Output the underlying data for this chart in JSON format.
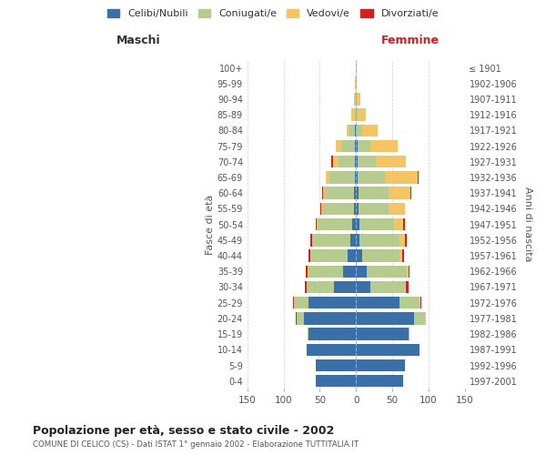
{
  "age_groups": [
    "0-4",
    "5-9",
    "10-14",
    "15-19",
    "20-24",
    "25-29",
    "30-34",
    "35-39",
    "40-44",
    "45-49",
    "50-54",
    "55-59",
    "60-64",
    "65-69",
    "70-74",
    "75-79",
    "80-84",
    "85-89",
    "90-94",
    "95-99",
    "100+"
  ],
  "birth_years": [
    "1997-2001",
    "1992-1996",
    "1987-1991",
    "1982-1986",
    "1977-1981",
    "1972-1976",
    "1967-1971",
    "1962-1966",
    "1957-1961",
    "1952-1956",
    "1947-1951",
    "1942-1946",
    "1937-1941",
    "1932-1936",
    "1927-1931",
    "1922-1926",
    "1917-1921",
    "1912-1916",
    "1907-1911",
    "1902-1906",
    "≤ 1901"
  ],
  "maschi": {
    "celibi": [
      55,
      55,
      68,
      65,
      72,
      65,
      30,
      18,
      12,
      8,
      5,
      3,
      3,
      2,
      2,
      2,
      1,
      0,
      0,
      0,
      0
    ],
    "coniugati": [
      0,
      0,
      0,
      2,
      10,
      20,
      38,
      48,
      50,
      52,
      48,
      43,
      40,
      35,
      22,
      18,
      8,
      2,
      1,
      0,
      0
    ],
    "vedovi": [
      0,
      0,
      0,
      0,
      0,
      1,
      0,
      1,
      1,
      1,
      1,
      2,
      3,
      5,
      8,
      8,
      4,
      4,
      2,
      1,
      0
    ],
    "divorziati": [
      0,
      0,
      0,
      0,
      1,
      1,
      2,
      2,
      2,
      2,
      2,
      1,
      1,
      0,
      2,
      0,
      0,
      0,
      0,
      0,
      0
    ]
  },
  "femmine": {
    "nubili": [
      65,
      68,
      88,
      72,
      80,
      60,
      20,
      15,
      8,
      5,
      5,
      3,
      3,
      2,
      2,
      2,
      0,
      0,
      0,
      0,
      0
    ],
    "coniugate": [
      0,
      0,
      0,
      2,
      15,
      28,
      48,
      55,
      52,
      55,
      48,
      42,
      42,
      38,
      25,
      18,
      8,
      2,
      1,
      0,
      0
    ],
    "vedove": [
      0,
      0,
      0,
      0,
      1,
      1,
      1,
      2,
      4,
      8,
      12,
      22,
      30,
      45,
      42,
      38,
      22,
      12,
      5,
      1,
      1
    ],
    "divorziate": [
      0,
      0,
      0,
      0,
      1,
      1,
      3,
      2,
      2,
      2,
      2,
      1,
      1,
      1,
      0,
      0,
      0,
      0,
      0,
      0,
      0
    ]
  },
  "colors": {
    "celibi": "#3a6fa8",
    "coniugati": "#b5cc8e",
    "vedovi": "#f5c565",
    "divorziati": "#cc2222"
  },
  "title": "Popolazione per età, sesso e stato civile - 2002",
  "subtitle": "COMUNE DI CELICO (CS) - Dati ISTAT 1° gennaio 2002 - Elaborazione TUTTITALIA.IT",
  "xlabel_left": "Maschi",
  "xlabel_right": "Femmine",
  "ylabel_left": "Fasce di età",
  "ylabel_right": "Anni di nascita",
  "xlim": 150,
  "legend_labels": [
    "Celibi/Nubili",
    "Coniugati/e",
    "Vedovi/e",
    "Divorziati/e"
  ],
  "background_color": "#ffffff",
  "bar_height": 0.78
}
